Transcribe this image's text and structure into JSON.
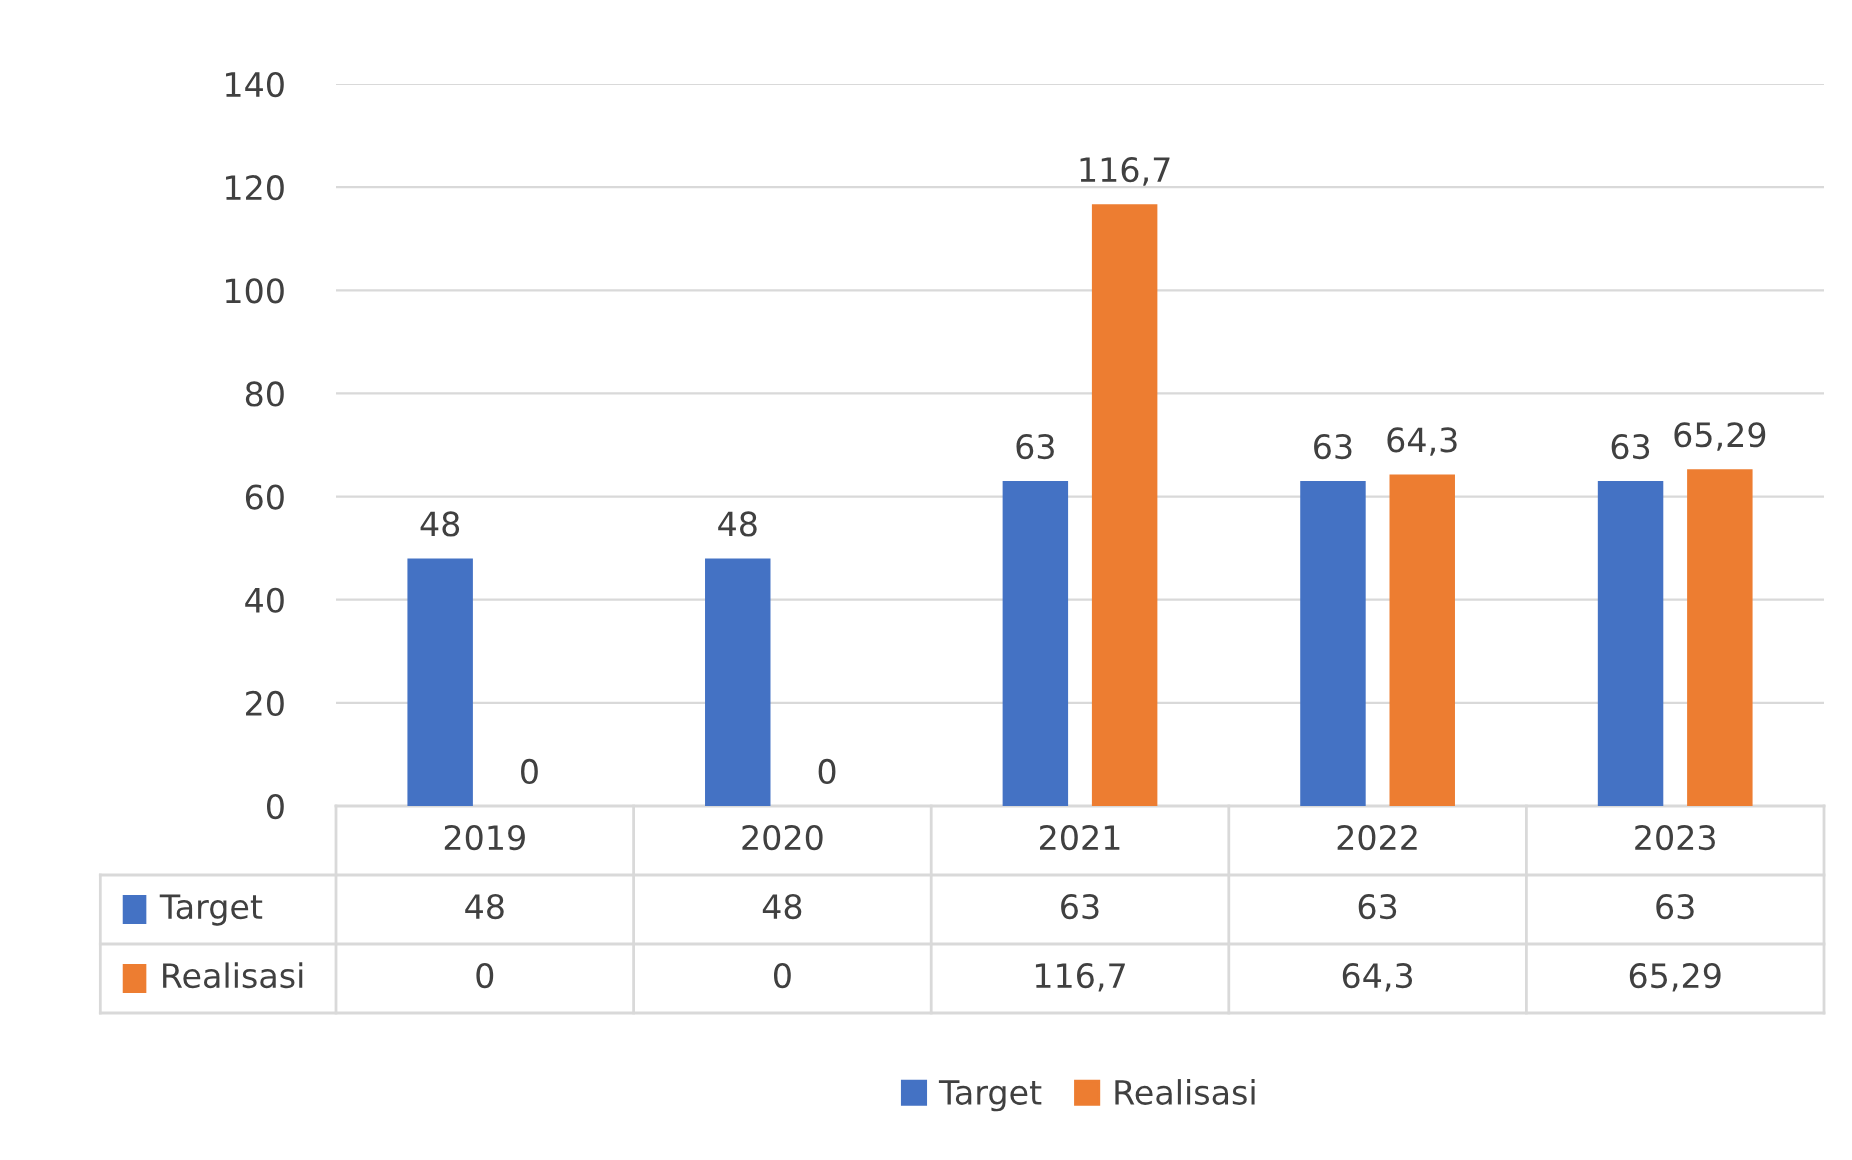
{
  "chart_data": {
    "type": "bar",
    "categories": [
      "2019",
      "2020",
      "2021",
      "2022",
      "2023"
    ],
    "series": [
      {
        "name": "Target",
        "color": "#4472c4",
        "values": [
          48,
          48,
          63,
          63,
          63
        ],
        "value_labels": [
          "48",
          "48",
          "63",
          "63",
          "63"
        ]
      },
      {
        "name": "Realisasi",
        "color": "#ed7d31",
        "values": [
          0,
          0,
          116.7,
          64.3,
          65.29
        ],
        "value_labels": [
          "0",
          "0",
          "116,7",
          "64,3",
          "65,29"
        ]
      }
    ],
    "ylim": [
      0,
      140
    ],
    "yticks": [
      0,
      20,
      40,
      60,
      80,
      100,
      120,
      140
    ],
    "grid": "y",
    "legend": "bottom"
  }
}
